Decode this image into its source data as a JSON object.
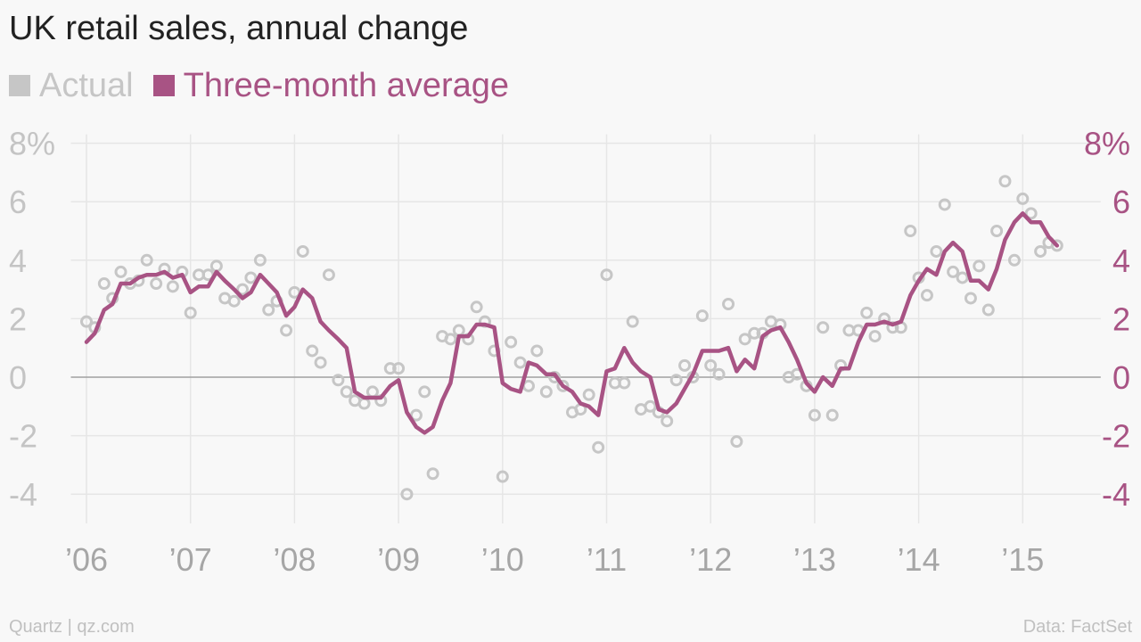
{
  "header": {
    "title": "UK retail sales, annual change"
  },
  "legend": {
    "items": [
      {
        "label": "Actual",
        "color": "#c6c6c6"
      },
      {
        "label": "Three-month average",
        "color": "#a85384"
      }
    ]
  },
  "footer": {
    "source_left": "Quartz | qz.com",
    "source_right": "Data: FactSet"
  },
  "chart_data": {
    "type": "line",
    "title": "UK retail sales, annual change",
    "xlabel": "",
    "ylabel": "",
    "ylim": [
      -5,
      8
    ],
    "yticks": [
      -4,
      -2,
      0,
      2,
      4,
      6,
      8
    ],
    "ytick_labels": [
      "-4",
      "-2",
      "0",
      "2",
      "4",
      "6",
      "8%"
    ],
    "xlim": [
      2005.85,
      2015.75
    ],
    "xticks": [
      2006,
      2007,
      2008,
      2009,
      2010,
      2011,
      2012,
      2013,
      2014,
      2015
    ],
    "xtick_labels": [
      "’06",
      "’07",
      "’08",
      "’09",
      "’10",
      "’11",
      "’12",
      "’13",
      "’14",
      "’15"
    ],
    "grid": true,
    "legend_position": "top-left",
    "series": [
      {
        "name": "Actual",
        "style": "scatter",
        "color": "#c6c6c6",
        "points": [
          [
            2006.0,
            1.9
          ],
          [
            2006.08,
            1.7
          ],
          [
            2006.17,
            3.2
          ],
          [
            2006.25,
            2.7
          ],
          [
            2006.33,
            3.6
          ],
          [
            2006.42,
            3.2
          ],
          [
            2006.5,
            3.3
          ],
          [
            2006.58,
            4.0
          ],
          [
            2006.67,
            3.2
          ],
          [
            2006.75,
            3.7
          ],
          [
            2006.83,
            3.1
          ],
          [
            2006.92,
            3.6
          ],
          [
            2007.0,
            2.2
          ],
          [
            2007.08,
            3.5
          ],
          [
            2007.17,
            3.5
          ],
          [
            2007.25,
            3.8
          ],
          [
            2007.33,
            2.7
          ],
          [
            2007.42,
            2.6
          ],
          [
            2007.5,
            3.0
          ],
          [
            2007.58,
            3.4
          ],
          [
            2007.67,
            4.0
          ],
          [
            2007.75,
            2.3
          ],
          [
            2007.83,
            2.6
          ],
          [
            2007.92,
            1.6
          ],
          [
            2008.0,
            2.9
          ],
          [
            2008.08,
            4.3
          ],
          [
            2008.17,
            0.9
          ],
          [
            2008.25,
            0.5
          ],
          [
            2008.33,
            3.5
          ],
          [
            2008.42,
            -0.1
          ],
          [
            2008.5,
            -0.5
          ],
          [
            2008.58,
            -0.8
          ],
          [
            2008.67,
            -0.9
          ],
          [
            2008.75,
            -0.5
          ],
          [
            2008.83,
            -0.8
          ],
          [
            2008.92,
            0.3
          ],
          [
            2009.0,
            0.3
          ],
          [
            2009.08,
            -4.0
          ],
          [
            2009.17,
            -1.3
          ],
          [
            2009.25,
            -0.5
          ],
          [
            2009.33,
            -3.3
          ],
          [
            2009.42,
            1.4
          ],
          [
            2009.5,
            1.3
          ],
          [
            2009.58,
            1.6
          ],
          [
            2009.67,
            1.3
          ],
          [
            2009.75,
            2.4
          ],
          [
            2009.83,
            1.9
          ],
          [
            2009.92,
            0.9
          ],
          [
            2010.0,
            -3.4
          ],
          [
            2010.08,
            1.2
          ],
          [
            2010.17,
            0.5
          ],
          [
            2010.25,
            -0.3
          ],
          [
            2010.33,
            0.9
          ],
          [
            2010.42,
            -0.5
          ],
          [
            2010.5,
            0.0
          ],
          [
            2010.58,
            -0.3
          ],
          [
            2010.67,
            -1.2
          ],
          [
            2010.75,
            -1.1
          ],
          [
            2010.83,
            -0.6
          ],
          [
            2010.92,
            -2.4
          ],
          [
            2011.0,
            3.5
          ],
          [
            2011.08,
            -0.2
          ],
          [
            2011.17,
            -0.2
          ],
          [
            2011.25,
            1.9
          ],
          [
            2011.33,
            -1.1
          ],
          [
            2011.42,
            -1.0
          ],
          [
            2011.5,
            -1.2
          ],
          [
            2011.58,
            -1.5
          ],
          [
            2011.67,
            -0.1
          ],
          [
            2011.75,
            0.4
          ],
          [
            2011.83,
            0.0
          ],
          [
            2011.92,
            2.1
          ],
          [
            2012.0,
            0.4
          ],
          [
            2012.08,
            0.1
          ],
          [
            2012.17,
            2.5
          ],
          [
            2012.25,
            -2.2
          ],
          [
            2012.33,
            1.3
          ],
          [
            2012.42,
            1.5
          ],
          [
            2012.5,
            1.5
          ],
          [
            2012.58,
            1.9
          ],
          [
            2012.67,
            1.8
          ],
          [
            2012.75,
            0.0
          ],
          [
            2012.83,
            0.1
          ],
          [
            2012.92,
            -0.3
          ],
          [
            2013.0,
            -1.3
          ],
          [
            2013.08,
            1.7
          ],
          [
            2013.17,
            -1.3
          ],
          [
            2013.25,
            0.4
          ],
          [
            2013.33,
            1.6
          ],
          [
            2013.42,
            1.6
          ],
          [
            2013.5,
            2.2
          ],
          [
            2013.58,
            1.4
          ],
          [
            2013.67,
            2.0
          ],
          [
            2013.75,
            1.7
          ],
          [
            2013.83,
            1.7
          ],
          [
            2013.92,
            5.0
          ],
          [
            2014.0,
            3.4
          ],
          [
            2014.08,
            2.8
          ],
          [
            2014.17,
            4.3
          ],
          [
            2014.25,
            5.9
          ],
          [
            2014.33,
            3.6
          ],
          [
            2014.42,
            3.4
          ],
          [
            2014.5,
            2.7
          ],
          [
            2014.58,
            3.8
          ],
          [
            2014.67,
            2.3
          ],
          [
            2014.75,
            5.0
          ],
          [
            2014.83,
            6.7
          ],
          [
            2014.92,
            4.0
          ],
          [
            2015.0,
            6.1
          ],
          [
            2015.08,
            5.6
          ],
          [
            2015.17,
            4.3
          ],
          [
            2015.25,
            4.6
          ],
          [
            2015.33,
            4.5
          ]
        ]
      },
      {
        "name": "Three-month average",
        "style": "line",
        "color": "#a85384",
        "points": [
          [
            2006.0,
            1.2
          ],
          [
            2006.08,
            1.5
          ],
          [
            2006.17,
            2.3
          ],
          [
            2006.25,
            2.5
          ],
          [
            2006.33,
            3.2
          ],
          [
            2006.42,
            3.2
          ],
          [
            2006.5,
            3.4
          ],
          [
            2006.58,
            3.5
          ],
          [
            2006.67,
            3.5
          ],
          [
            2006.75,
            3.6
          ],
          [
            2006.83,
            3.4
          ],
          [
            2006.92,
            3.5
          ],
          [
            2007.0,
            2.9
          ],
          [
            2007.08,
            3.1
          ],
          [
            2007.17,
            3.1
          ],
          [
            2007.25,
            3.6
          ],
          [
            2007.33,
            3.3
          ],
          [
            2007.42,
            3.0
          ],
          [
            2007.5,
            2.7
          ],
          [
            2007.58,
            2.9
          ],
          [
            2007.67,
            3.5
          ],
          [
            2007.75,
            3.2
          ],
          [
            2007.83,
            2.9
          ],
          [
            2007.92,
            2.1
          ],
          [
            2008.0,
            2.4
          ],
          [
            2008.08,
            3.0
          ],
          [
            2008.17,
            2.7
          ],
          [
            2008.25,
            1.9
          ],
          [
            2008.33,
            1.6
          ],
          [
            2008.42,
            1.3
          ],
          [
            2008.5,
            1.0
          ],
          [
            2008.58,
            -0.5
          ],
          [
            2008.67,
            -0.7
          ],
          [
            2008.75,
            -0.7
          ],
          [
            2008.83,
            -0.7
          ],
          [
            2008.92,
            -0.3
          ],
          [
            2009.0,
            -0.1
          ],
          [
            2009.08,
            -1.2
          ],
          [
            2009.17,
            -1.7
          ],
          [
            2009.25,
            -1.9
          ],
          [
            2009.33,
            -1.7
          ],
          [
            2009.42,
            -0.8
          ],
          [
            2009.5,
            -0.2
          ],
          [
            2009.58,
            1.4
          ],
          [
            2009.67,
            1.4
          ],
          [
            2009.75,
            1.8
          ],
          [
            2009.83,
            1.8
          ],
          [
            2009.92,
            1.7
          ],
          [
            2010.0,
            -0.2
          ],
          [
            2010.08,
            -0.4
          ],
          [
            2010.17,
            -0.5
          ],
          [
            2010.25,
            0.5
          ],
          [
            2010.33,
            0.4
          ],
          [
            2010.42,
            0.1
          ],
          [
            2010.5,
            0.1
          ],
          [
            2010.58,
            -0.3
          ],
          [
            2010.67,
            -0.5
          ],
          [
            2010.75,
            -0.9
          ],
          [
            2010.83,
            -1.0
          ],
          [
            2010.92,
            -1.3
          ],
          [
            2011.0,
            0.2
          ],
          [
            2011.08,
            0.3
          ],
          [
            2011.17,
            1.0
          ],
          [
            2011.25,
            0.5
          ],
          [
            2011.33,
            0.2
          ],
          [
            2011.42,
            0.0
          ],
          [
            2011.5,
            -1.1
          ],
          [
            2011.58,
            -1.2
          ],
          [
            2011.67,
            -0.9
          ],
          [
            2011.75,
            -0.4
          ],
          [
            2011.83,
            0.1
          ],
          [
            2011.92,
            0.9
          ],
          [
            2012.0,
            0.9
          ],
          [
            2012.08,
            0.9
          ],
          [
            2012.17,
            1.0
          ],
          [
            2012.25,
            0.2
          ],
          [
            2012.33,
            0.6
          ],
          [
            2012.42,
            0.3
          ],
          [
            2012.5,
            1.4
          ],
          [
            2012.58,
            1.6
          ],
          [
            2012.67,
            1.7
          ],
          [
            2012.75,
            1.2
          ],
          [
            2012.83,
            0.6
          ],
          [
            2012.92,
            -0.2
          ],
          [
            2013.0,
            -0.5
          ],
          [
            2013.08,
            0.0
          ],
          [
            2013.17,
            -0.3
          ],
          [
            2013.25,
            0.3
          ],
          [
            2013.33,
            0.3
          ],
          [
            2013.42,
            1.2
          ],
          [
            2013.5,
            1.8
          ],
          [
            2013.58,
            1.8
          ],
          [
            2013.67,
            1.9
          ],
          [
            2013.75,
            1.8
          ],
          [
            2013.83,
            1.9
          ],
          [
            2013.92,
            2.8
          ],
          [
            2014.0,
            3.3
          ],
          [
            2014.08,
            3.7
          ],
          [
            2014.17,
            3.5
          ],
          [
            2014.25,
            4.3
          ],
          [
            2014.33,
            4.6
          ],
          [
            2014.42,
            4.3
          ],
          [
            2014.5,
            3.3
          ],
          [
            2014.58,
            3.3
          ],
          [
            2014.67,
            3.0
          ],
          [
            2014.75,
            3.7
          ],
          [
            2014.83,
            4.7
          ],
          [
            2014.92,
            5.3
          ],
          [
            2015.0,
            5.6
          ],
          [
            2015.08,
            5.3
          ],
          [
            2015.17,
            5.3
          ],
          [
            2015.25,
            4.8
          ],
          [
            2015.33,
            4.5
          ]
        ]
      }
    ]
  }
}
